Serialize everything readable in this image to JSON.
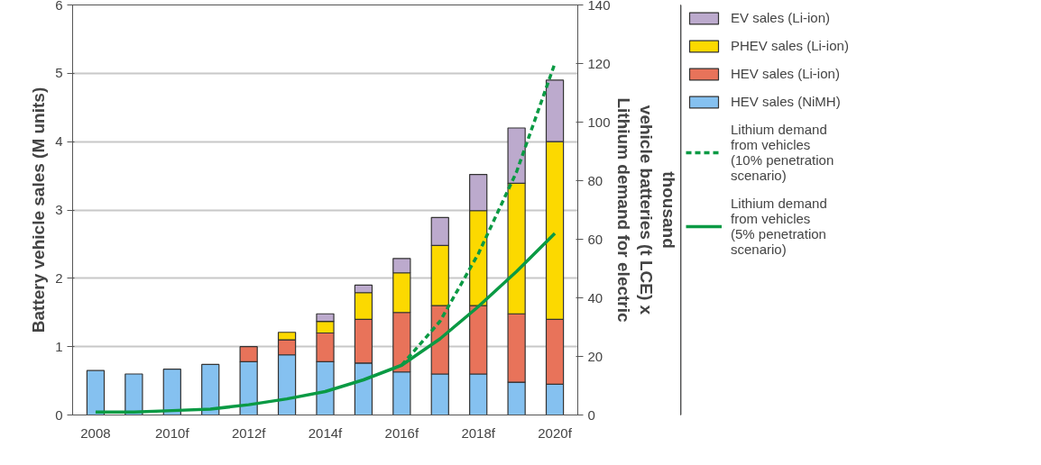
{
  "chart_data": {
    "type": "bar",
    "stacked": true,
    "ylabel": "Battery vehicle sales (M units)",
    "y2label": "Lithium demand for electric vehicle batteries (t LCE) x thousand",
    "categories": [
      "2008",
      null,
      "2010f",
      null,
      "2012f",
      null,
      "2014f",
      null,
      "2016f",
      null,
      "2018f",
      null,
      "2020f"
    ],
    "ylim": [
      0,
      6
    ],
    "yticks": [
      0,
      1,
      2,
      3,
      4,
      5,
      6
    ],
    "y2lim": [
      0,
      140
    ],
    "y2ticks": [
      0,
      20,
      40,
      60,
      80,
      100,
      120,
      140
    ],
    "grid": "y",
    "legend": "right",
    "series": [
      {
        "name": "HEV sales (NiMH)",
        "color": "#85c1f0",
        "values": [
          0.65,
          0.6,
          0.67,
          0.74,
          0.78,
          0.88,
          0.78,
          0.76,
          0.63,
          0.6,
          0.6,
          0.48,
          0.45
        ]
      },
      {
        "name": "HEV sales (Li-ion)",
        "color": "#e8735a",
        "values": [
          null,
          null,
          null,
          null,
          0.22,
          0.22,
          0.42,
          0.64,
          0.87,
          1.0,
          1.0,
          1.0,
          0.95
        ]
      },
      {
        "name": "PHEV sales (Li-ion)",
        "color": "#fcd900",
        "values": [
          null,
          null,
          null,
          null,
          null,
          0.11,
          0.17,
          0.39,
          0.58,
          0.88,
          1.39,
          1.91,
          2.6
        ]
      },
      {
        "name": "EV sales (Li-ion)",
        "color": "#bcaacd",
        "values": [
          null,
          null,
          null,
          null,
          null,
          null,
          0.11,
          0.11,
          0.21,
          0.41,
          0.53,
          0.81,
          0.9
        ]
      },
      {
        "name": "Lithium demand from vehicles (10% penetration scenario)",
        "type": "line",
        "axis": "y2",
        "line_style": "dashed",
        "color": "#0a9a44",
        "values": [
          null,
          null,
          null,
          null,
          null,
          null,
          null,
          null,
          17,
          32,
          55,
          83,
          120
        ]
      },
      {
        "name": "Lithium demand from vehicles (5% penetration scenario)",
        "type": "line",
        "axis": "y2",
        "line_style": "solid",
        "color": "#0a9a44",
        "values": [
          1,
          1,
          1.5,
          2,
          3.5,
          5.5,
          8,
          12,
          17,
          26,
          37,
          49,
          62
        ]
      }
    ]
  }
}
